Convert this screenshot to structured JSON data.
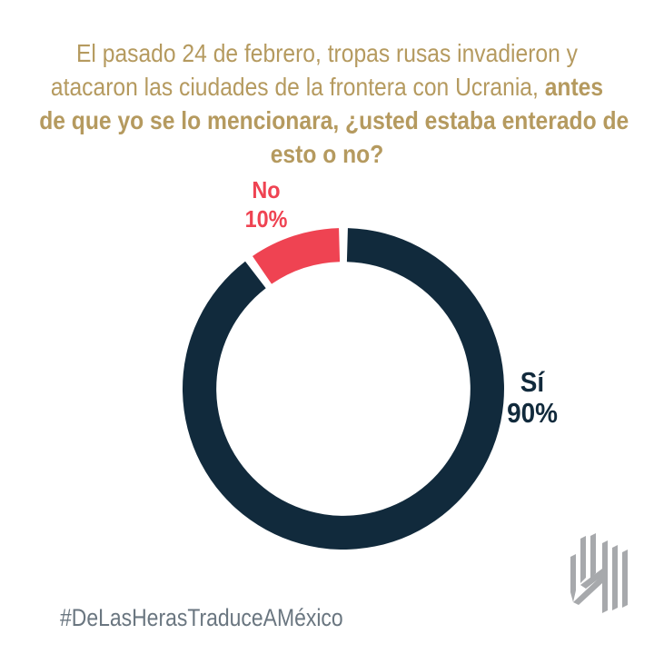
{
  "page": {
    "background": "#ffffff"
  },
  "title": {
    "color": "#B59A5F",
    "full_text": "El pasado 24 de febrero, tropas rusas invadieron y atacaron las ciudades de la frontera con Ucrania, antes de que yo se lo mencionara, ¿usted estaba enterado de esto o no?",
    "lines": [
      {
        "regular": "El pasado 24 de febrero, tropas rusas invadieron y",
        "bold": ""
      },
      {
        "regular": "atacaron las ciudades de la frontera con Ucrania, ",
        "bold": "antes"
      },
      {
        "regular": "",
        "bold": "de que yo se lo mencionara, ¿usted estaba enterado de"
      },
      {
        "regular": "",
        "bold": "esto o no?"
      }
    ]
  },
  "chart_data": {
    "type": "pie",
    "donut": true,
    "title": "El pasado 24 de febrero, tropas rusas invadieron y atacaron las ciudades de la frontera con Ucrania, antes de que yo se lo mencionara, ¿usted estaba enterado de esto o no?",
    "categories": [
      "Sí",
      "No"
    ],
    "values": [
      90,
      10
    ],
    "colors": [
      "#112A3C",
      "#EF4352"
    ],
    "labels": [
      {
        "name": "Sí",
        "value_label": "90%",
        "color": "#112A3C"
      },
      {
        "name": "No",
        "value_label": "10%",
        "color": "#EF4352"
      }
    ],
    "start_angle_deg": 0,
    "direction": "clockwise",
    "inner_radius_ratio": 0.79,
    "pad_angle_deg": 1.6,
    "legend_position": "none"
  },
  "footer": {
    "hashtag": "#DeLasHerasTraduceAMéxico",
    "color": "#6A7680"
  },
  "logo": {
    "name": "de-las-heras-logo",
    "color": "#A7A9AC"
  }
}
